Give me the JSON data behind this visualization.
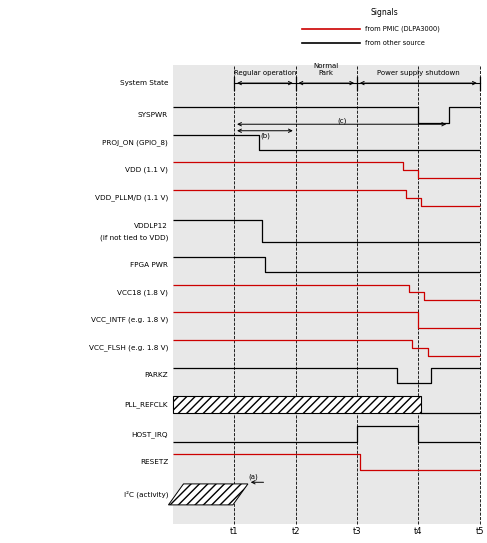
{
  "figsize": [
    4.87,
    5.43
  ],
  "dpi": 100,
  "bg_gray": "#e8e8e8",
  "c_red": "#cc0000",
  "c_black": "black",
  "c_white": "white",
  "legend": {
    "title": "Signals",
    "red_label": "from PMIC (DLPA3000)",
    "black_label": "from other source"
  },
  "time_labels": [
    "t1",
    "t2",
    "t3",
    "t4",
    "t5"
  ],
  "signal_rows": [
    {
      "label": "System State",
      "label2": "",
      "type": "state",
      "color": "black"
    },
    {
      "label": "SYSPWR",
      "label2": "",
      "type": "digital",
      "color": "black"
    },
    {
      "label": "PROJ_ON (GPIO_8)",
      "label2": "",
      "type": "digital",
      "color": "black"
    },
    {
      "label": "VDD (1.1 V)",
      "label2": "",
      "type": "digital",
      "color": "red"
    },
    {
      "label": "VDD_PLLM/D (1.1 V)",
      "label2": "",
      "type": "digital",
      "color": "red"
    },
    {
      "label": "VDDLP12",
      "label2": "(if not tied to VDD)",
      "type": "digital",
      "color": "black"
    },
    {
      "label": "FPGA PWR",
      "label2": "",
      "type": "digital",
      "color": "black"
    },
    {
      "label": "VCC18 (1.8 V)",
      "label2": "",
      "type": "digital",
      "color": "red"
    },
    {
      "label": "VCC_INTF (e.g. 1.8 V)",
      "label2": "",
      "type": "digital",
      "color": "red"
    },
    {
      "label": "VCC_FLSH (e.g. 1.8 V)",
      "label2": "",
      "type": "digital",
      "color": "red"
    },
    {
      "label": "PARKZ",
      "label2": "",
      "type": "digital",
      "color": "black"
    },
    {
      "label": "PLL_REFCLK",
      "label2": "",
      "type": "clock",
      "color": "black"
    },
    {
      "label": "HOST_IRQ",
      "label2": "",
      "type": "digital",
      "color": "black"
    },
    {
      "label": "RESETZ",
      "label2": "",
      "type": "digital",
      "color": "red"
    },
    {
      "label": "I²C (activity)",
      "label2": "",
      "type": "i2c",
      "color": "black"
    }
  ]
}
